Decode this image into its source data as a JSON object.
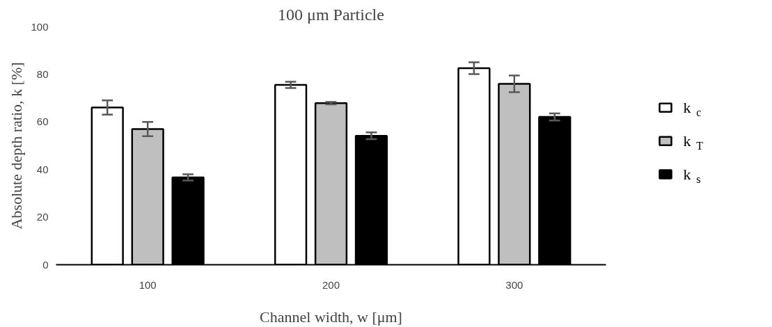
{
  "chart_data": {
    "type": "bar",
    "title": "100 μm Particle",
    "xlabel": "Channel width, w [μm]",
    "ylabel": "Absolute depth ratio, k [%]",
    "categories": [
      "100",
      "200",
      "300"
    ],
    "series": [
      {
        "name": "k$_{c}$",
        "color": "#ffffff",
        "values": [
          66.1,
          75.6,
          82.6
        ],
        "errors": [
          3.0,
          1.3,
          2.5
        ]
      },
      {
        "name": "k$_{T}$",
        "color": "#bfbfbf",
        "values": [
          57.0,
          67.9,
          76.0
        ],
        "errors": [
          3.0,
          0.5,
          3.5
        ]
      },
      {
        "name": "k$_{s}$",
        "color": "#000000",
        "values": [
          36.7,
          54.2,
          62.1
        ],
        "errors": [
          1.3,
          1.4,
          1.5
        ]
      }
    ],
    "ylim": [
      0,
      100
    ],
    "yticks": [
      0,
      20,
      40,
      60,
      80,
      100
    ],
    "grid": false,
    "legend": "right"
  }
}
